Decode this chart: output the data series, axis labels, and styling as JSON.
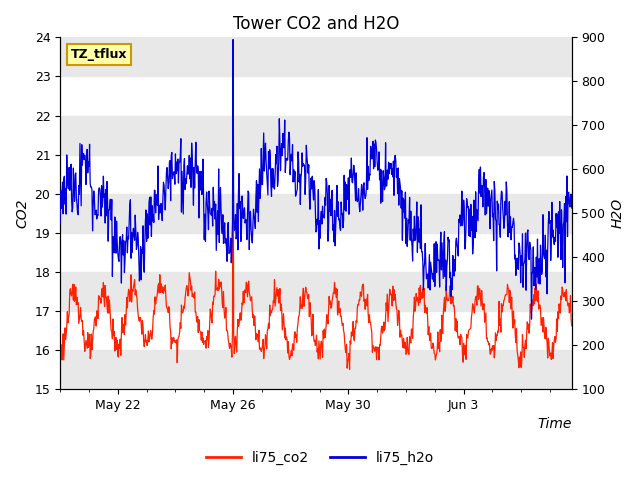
{
  "title": "Tower CO2 and H2O",
  "xlabel": "Time",
  "ylabel_left": "CO2",
  "ylabel_right": "H2O",
  "ylim_left": [
    15.0,
    24.0
  ],
  "ylim_right": [
    100,
    900
  ],
  "yticks_left": [
    15.0,
    16.0,
    17.0,
    18.0,
    19.0,
    20.0,
    21.0,
    22.0,
    23.0,
    24.0
  ],
  "yticks_right": [
    100,
    200,
    300,
    400,
    500,
    600,
    700,
    800,
    900
  ],
  "tz_label": "TZ_tflux",
  "legend_co2": "li75_co2",
  "legend_h2o": "li75_h2o",
  "color_co2": "#FF2200",
  "color_h2o": "#0000DD",
  "band_color": "#E8E8E8",
  "background_color": "#FFFFFF",
  "title_fontsize": 12,
  "axis_fontsize": 10,
  "tick_fontsize": 9,
  "legend_fontsize": 10,
  "spike_day": 6,
  "co2_spike_val": 23.3,
  "h2o_spike_val": 895
}
